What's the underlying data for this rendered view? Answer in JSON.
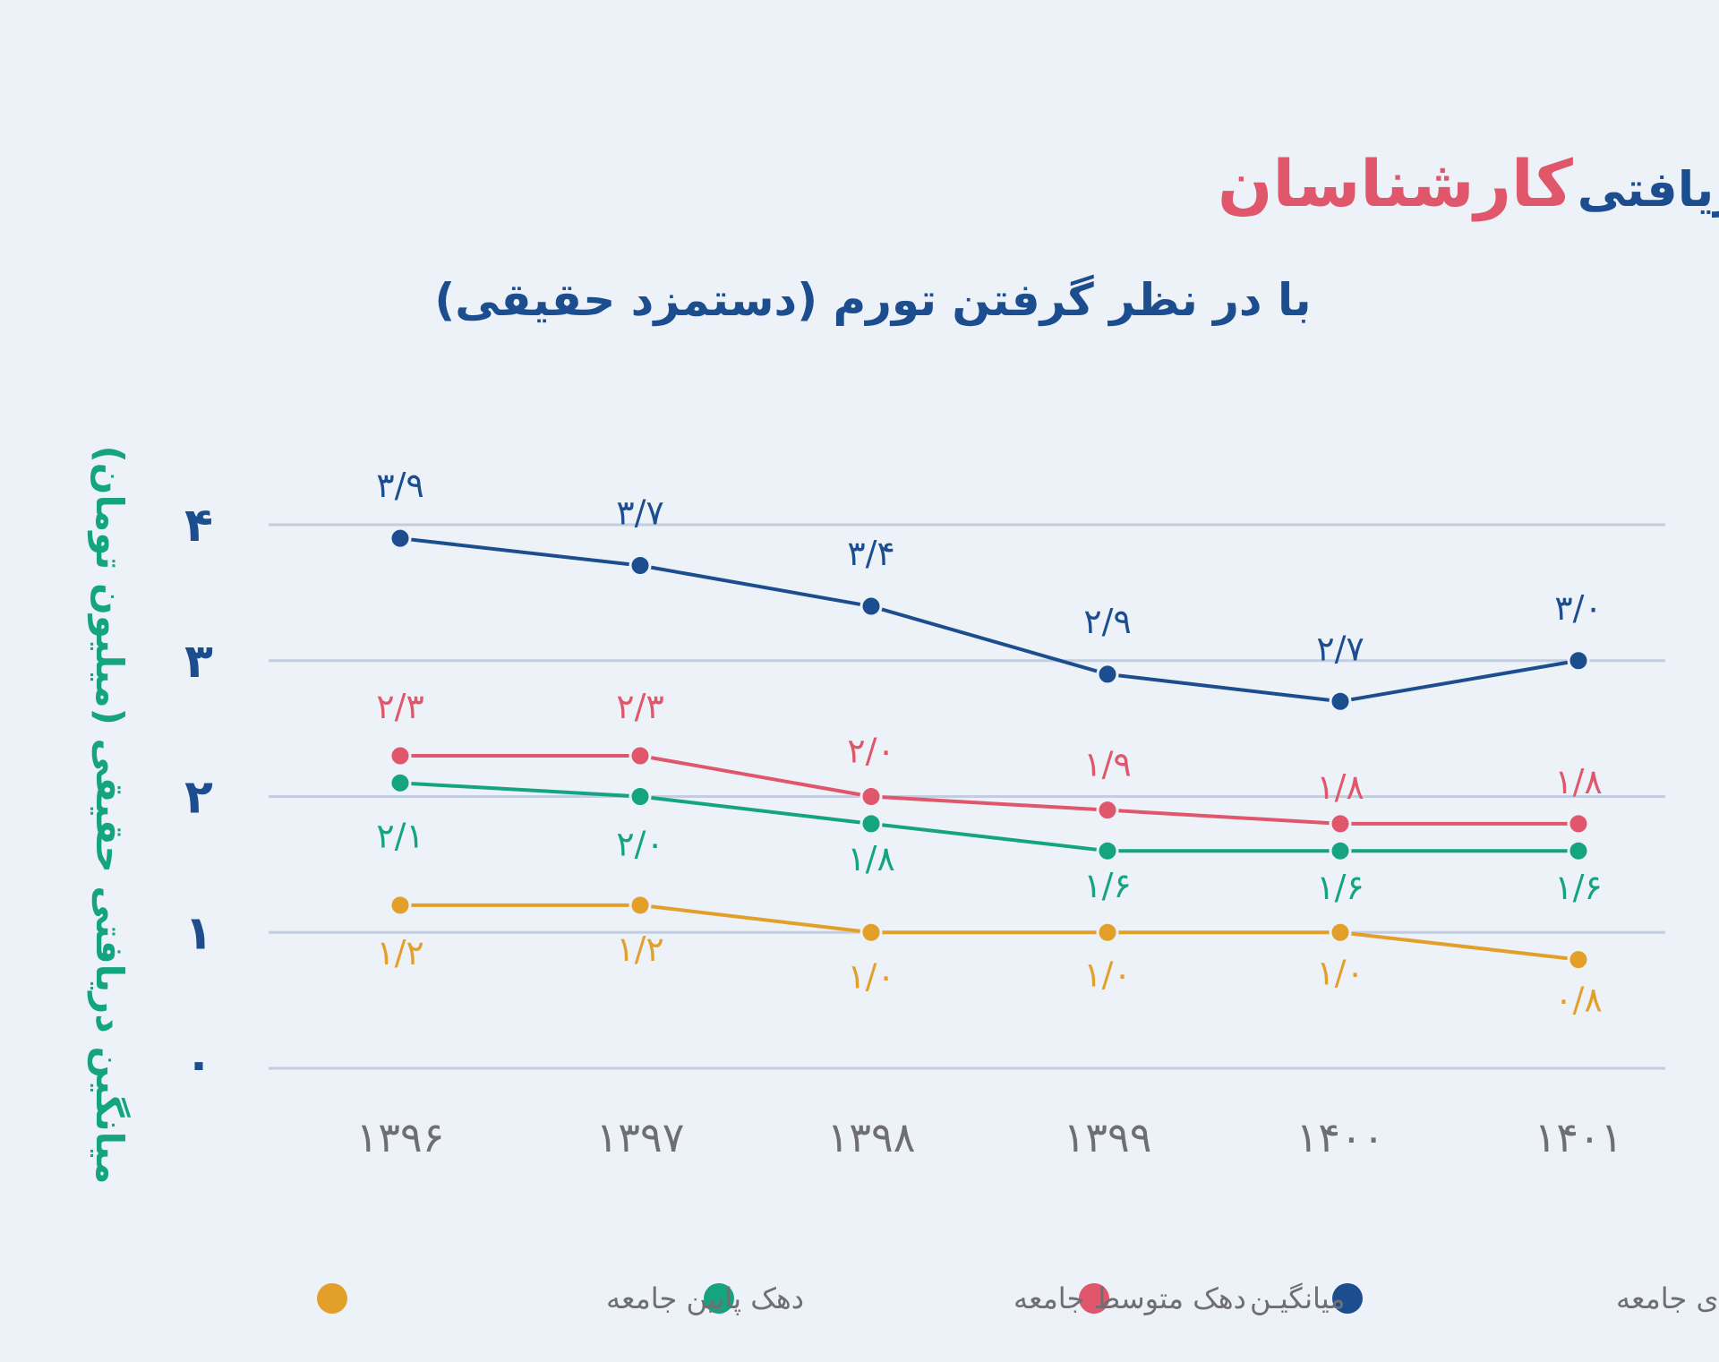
{
  "chart_data": {
    "type": "line",
    "title_part1": "میانگین دریافتی",
    "title_part2": "کارشناسان",
    "subtitle": "با در نظر گرفتن تورم (دستمزد حقیقی)",
    "xlabel": "",
    "ylabel": "میانگین دریافتی حقیقی (میلیون تومان)",
    "ylim": [
      0,
      4
    ],
    "y_ticks": [
      0,
      1,
      2,
      3,
      4
    ],
    "y_tick_labels": [
      "۰",
      "۱",
      "۲",
      "۳",
      "۴"
    ],
    "categories": [
      "۱۳۹۶",
      "۱۳۹۷",
      "۱۳۹۸",
      "۱۳۹۹",
      "۱۴۰۰",
      "۱۴۰۱"
    ],
    "grid": true,
    "legend_position": "bottom",
    "series": [
      {
        "name": "دهک بالای جامعه",
        "color": "#1c4d8f",
        "values": [
          3.9,
          3.7,
          3.4,
          2.9,
          2.7,
          3.0
        ],
        "labels": [
          "۳/۹",
          "۳/۷",
          "۳/۴",
          "۲/۹",
          "۲/۷",
          "۳/۰"
        ]
      },
      {
        "name": "میانگیـن",
        "color": "#e0566b",
        "values": [
          2.3,
          2.3,
          2.0,
          1.9,
          1.8,
          1.8
        ],
        "labels": [
          "۲/۳",
          "۲/۳",
          "۲/۰",
          "۱/۹",
          "۱/۸",
          "۱/۸"
        ]
      },
      {
        "name": "دهک متوسط جامعه",
        "color": "#14a47f",
        "values": [
          2.1,
          2.0,
          1.8,
          1.6,
          1.6,
          1.6
        ],
        "labels": [
          "۲/۱",
          "۲/۰",
          "۱/۸",
          "۱/۶",
          "۱/۶",
          "۱/۶"
        ]
      },
      {
        "name": "دهک پایین جامعه",
        "color": "#e2a02b",
        "values": [
          1.2,
          1.2,
          1.0,
          1.0,
          1.0,
          0.8
        ],
        "labels": [
          "۱/۲",
          "۱/۲",
          "۱/۰",
          "۱/۰",
          "۱/۰",
          "۰/۸"
        ]
      }
    ]
  }
}
